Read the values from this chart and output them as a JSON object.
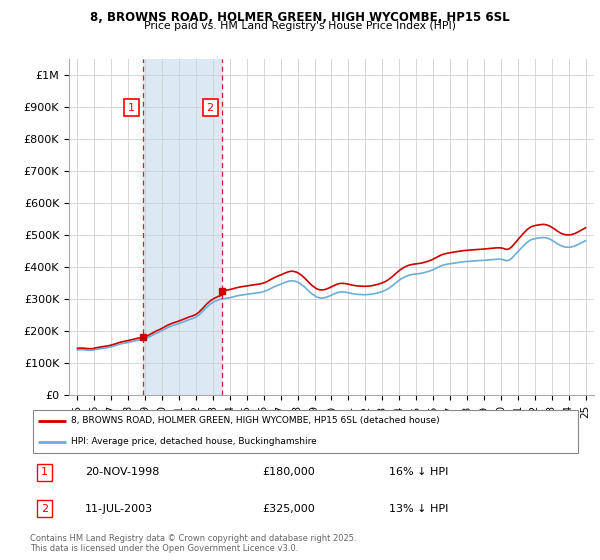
{
  "title_line1": "8, BROWNS ROAD, HOLMER GREEN, HIGH WYCOMBE, HP15 6SL",
  "title_line2": "Price paid vs. HM Land Registry's House Price Index (HPI)",
  "ylim": [
    0,
    1050000
  ],
  "yticks": [
    0,
    100000,
    200000,
    300000,
    400000,
    500000,
    600000,
    700000,
    800000,
    900000,
    1000000
  ],
  "ytick_labels": [
    "£0",
    "£100K",
    "£200K",
    "£300K",
    "£400K",
    "£500K",
    "£600K",
    "£700K",
    "£800K",
    "£900K",
    "£1M"
  ],
  "hpi_color": "#6baed6",
  "sale_color": "#cc0000",
  "grid_color": "#d0d0d0",
  "span_color": "#dce9f5",
  "annotation1_label": "1",
  "annotation1_date": "20-NOV-1998",
  "annotation1_price": 180000,
  "annotation1_hpi_pct": "16% ↓ HPI",
  "annotation2_label": "2",
  "annotation2_date": "11-JUL-2003",
  "annotation2_price": 325000,
  "annotation2_hpi_pct": "13% ↓ HPI",
  "legend_line1": "8, BROWNS ROAD, HOLMER GREEN, HIGH WYCOMBE, HP15 6SL (detached house)",
  "legend_line2": "HPI: Average price, detached house, Buckinghamshire",
  "footnote": "Contains HM Land Registry data © Crown copyright and database right 2025.\nThis data is licensed under the Open Government Licence v3.0.",
  "sale1_x": 1998.88,
  "sale1_y": 180000,
  "sale2_x": 2003.53,
  "sale2_y": 325000,
  "vline1_x": 1998.88,
  "vline2_x": 2003.53,
  "xlim": [
    1994.5,
    2025.5
  ],
  "xticks": [
    1995,
    1996,
    1997,
    1998,
    1999,
    2000,
    2001,
    2002,
    2003,
    2004,
    2005,
    2006,
    2007,
    2008,
    2009,
    2010,
    2011,
    2012,
    2013,
    2014,
    2015,
    2016,
    2017,
    2018,
    2019,
    2020,
    2021,
    2022,
    2023,
    2024,
    2025
  ],
  "hpi_index": [
    [
      1995,
      1
    ],
    [
      1995.08,
      1.005
    ],
    [
      1995.17,
      1.007
    ],
    [
      1995.25,
      1.006
    ],
    [
      1995.33,
      1.005
    ],
    [
      1995.42,
      1.003
    ],
    [
      1995.5,
      0.998
    ],
    [
      1995.58,
      0.996
    ],
    [
      1995.67,
      0.995
    ],
    [
      1995.75,
      0.993
    ],
    [
      1995.83,
      0.994
    ],
    [
      1995.92,
      0.996
    ],
    [
      1996,
      1.004
    ],
    [
      1996.08,
      1.012
    ],
    [
      1996.17,
      1.018
    ],
    [
      1996.25,
      1.022
    ],
    [
      1996.33,
      1.028
    ],
    [
      1996.42,
      1.033
    ],
    [
      1996.5,
      1.038
    ],
    [
      1996.58,
      1.043
    ],
    [
      1996.67,
      1.047
    ],
    [
      1996.75,
      1.051
    ],
    [
      1996.83,
      1.057
    ],
    [
      1996.92,
      1.064
    ],
    [
      1997,
      1.072
    ],
    [
      1997.08,
      1.082
    ],
    [
      1997.17,
      1.09
    ],
    [
      1997.25,
      1.1
    ],
    [
      1997.33,
      1.11
    ],
    [
      1997.42,
      1.12
    ],
    [
      1997.5,
      1.13
    ],
    [
      1997.58,
      1.138
    ],
    [
      1997.67,
      1.144
    ],
    [
      1997.75,
      1.15
    ],
    [
      1997.83,
      1.157
    ],
    [
      1997.92,
      1.163
    ],
    [
      1998,
      1.17
    ],
    [
      1998.08,
      1.178
    ],
    [
      1998.17,
      1.185
    ],
    [
      1998.25,
      1.192
    ],
    [
      1998.33,
      1.2
    ],
    [
      1998.42,
      1.208
    ],
    [
      1998.5,
      1.216
    ],
    [
      1998.58,
      1.222
    ],
    [
      1998.67,
      1.228
    ],
    [
      1998.75,
      1.233
    ],
    [
      1998.83,
      1.238
    ],
    [
      1998.92,
      1.243
    ],
    [
      1999,
      1.25
    ],
    [
      1999.08,
      1.262
    ],
    [
      1999.17,
      1.278
    ],
    [
      1999.25,
      1.295
    ],
    [
      1999.33,
      1.312
    ],
    [
      1999.42,
      1.328
    ],
    [
      1999.5,
      1.345
    ],
    [
      1999.58,
      1.362
    ],
    [
      1999.67,
      1.376
    ],
    [
      1999.75,
      1.39
    ],
    [
      1999.83,
      1.403
    ],
    [
      1999.92,
      1.418
    ],
    [
      2000,
      1.434
    ],
    [
      2000.08,
      1.452
    ],
    [
      2000.17,
      1.468
    ],
    [
      2000.25,
      1.485
    ],
    [
      2000.33,
      1.5
    ],
    [
      2000.42,
      1.515
    ],
    [
      2000.5,
      1.528
    ],
    [
      2000.58,
      1.54
    ],
    [
      2000.67,
      1.55
    ],
    [
      2000.75,
      1.56
    ],
    [
      2000.83,
      1.57
    ],
    [
      2000.92,
      1.58
    ],
    [
      2001,
      1.59
    ],
    [
      2001.08,
      1.602
    ],
    [
      2001.17,
      1.614
    ],
    [
      2001.25,
      1.626
    ],
    [
      2001.33,
      1.638
    ],
    [
      2001.42,
      1.65
    ],
    [
      2001.5,
      1.663
    ],
    [
      2001.58,
      1.675
    ],
    [
      2001.67,
      1.685
    ],
    [
      2001.75,
      1.695
    ],
    [
      2001.83,
      1.706
    ],
    [
      2001.92,
      1.718
    ],
    [
      2002,
      1.732
    ],
    [
      2002.08,
      1.755
    ],
    [
      2002.17,
      1.78
    ],
    [
      2002.25,
      1.808
    ],
    [
      2002.33,
      1.838
    ],
    [
      2002.42,
      1.87
    ],
    [
      2002.5,
      1.904
    ],
    [
      2002.58,
      1.938
    ],
    [
      2002.67,
      1.968
    ],
    [
      2002.75,
      1.995
    ],
    [
      2002.83,
      2.02
    ],
    [
      2002.92,
      2.042
    ],
    [
      2003,
      2.062
    ],
    [
      2003.08,
      2.08
    ],
    [
      2003.17,
      2.096
    ],
    [
      2003.25,
      2.11
    ],
    [
      2003.33,
      2.122
    ],
    [
      2003.42,
      2.132
    ],
    [
      2003.5,
      2.14
    ],
    [
      2003.58,
      2.146
    ],
    [
      2003.67,
      2.15
    ],
    [
      2003.75,
      2.154
    ],
    [
      2003.83,
      2.158
    ],
    [
      2003.92,
      2.162
    ],
    [
      2004,
      2.168
    ],
    [
      2004.08,
      2.175
    ],
    [
      2004.17,
      2.183
    ],
    [
      2004.25,
      2.192
    ],
    [
      2004.33,
      2.2
    ],
    [
      2004.42,
      2.208
    ],
    [
      2004.5,
      2.215
    ],
    [
      2004.58,
      2.22
    ],
    [
      2004.67,
      2.225
    ],
    [
      2004.75,
      2.23
    ],
    [
      2004.83,
      2.235
    ],
    [
      2004.92,
      2.24
    ],
    [
      2005,
      2.245
    ],
    [
      2005.08,
      2.25
    ],
    [
      2005.17,
      2.254
    ],
    [
      2005.25,
      2.258
    ],
    [
      2005.33,
      2.262
    ],
    [
      2005.42,
      2.266
    ],
    [
      2005.5,
      2.27
    ],
    [
      2005.58,
      2.274
    ],
    [
      2005.67,
      2.278
    ],
    [
      2005.75,
      2.282
    ],
    [
      2005.83,
      2.288
    ],
    [
      2005.92,
      2.295
    ],
    [
      2006,
      2.304
    ],
    [
      2006.08,
      2.315
    ],
    [
      2006.17,
      2.328
    ],
    [
      2006.25,
      2.342
    ],
    [
      2006.33,
      2.358
    ],
    [
      2006.42,
      2.374
    ],
    [
      2006.5,
      2.39
    ],
    [
      2006.58,
      2.406
    ],
    [
      2006.67,
      2.42
    ],
    [
      2006.75,
      2.433
    ],
    [
      2006.83,
      2.445
    ],
    [
      2006.92,
      2.456
    ],
    [
      2007,
      2.468
    ],
    [
      2007.08,
      2.482
    ],
    [
      2007.17,
      2.495
    ],
    [
      2007.25,
      2.508
    ],
    [
      2007.33,
      2.52
    ],
    [
      2007.42,
      2.53
    ],
    [
      2007.5,
      2.538
    ],
    [
      2007.58,
      2.543
    ],
    [
      2007.67,
      2.545
    ],
    [
      2007.75,
      2.543
    ],
    [
      2007.83,
      2.537
    ],
    [
      2007.92,
      2.528
    ],
    [
      2008,
      2.515
    ],
    [
      2008.08,
      2.498
    ],
    [
      2008.17,
      2.478
    ],
    [
      2008.25,
      2.455
    ],
    [
      2008.33,
      2.43
    ],
    [
      2008.42,
      2.403
    ],
    [
      2008.5,
      2.374
    ],
    [
      2008.58,
      2.344
    ],
    [
      2008.67,
      2.314
    ],
    [
      2008.75,
      2.285
    ],
    [
      2008.83,
      2.258
    ],
    [
      2008.92,
      2.234
    ],
    [
      2009,
      2.212
    ],
    [
      2009.08,
      2.193
    ],
    [
      2009.17,
      2.178
    ],
    [
      2009.25,
      2.168
    ],
    [
      2009.33,
      2.162
    ],
    [
      2009.42,
      2.16
    ],
    [
      2009.5,
      2.162
    ],
    [
      2009.58,
      2.167
    ],
    [
      2009.67,
      2.175
    ],
    [
      2009.75,
      2.185
    ],
    [
      2009.83,
      2.197
    ],
    [
      2009.92,
      2.21
    ],
    [
      2010,
      2.225
    ],
    [
      2010.08,
      2.24
    ],
    [
      2010.17,
      2.254
    ],
    [
      2010.25,
      2.267
    ],
    [
      2010.33,
      2.278
    ],
    [
      2010.42,
      2.287
    ],
    [
      2010.5,
      2.293
    ],
    [
      2010.58,
      2.296
    ],
    [
      2010.67,
      2.296
    ],
    [
      2010.75,
      2.294
    ],
    [
      2010.83,
      2.29
    ],
    [
      2010.92,
      2.284
    ],
    [
      2011,
      2.277
    ],
    [
      2011.08,
      2.27
    ],
    [
      2011.17,
      2.263
    ],
    [
      2011.25,
      2.257
    ],
    [
      2011.33,
      2.252
    ],
    [
      2011.42,
      2.248
    ],
    [
      2011.5,
      2.244
    ],
    [
      2011.58,
      2.241
    ],
    [
      2011.67,
      2.239
    ],
    [
      2011.75,
      2.237
    ],
    [
      2011.83,
      2.236
    ],
    [
      2011.92,
      2.235
    ],
    [
      2012,
      2.235
    ],
    [
      2012.08,
      2.236
    ],
    [
      2012.17,
      2.238
    ],
    [
      2012.25,
      2.241
    ],
    [
      2012.33,
      2.245
    ],
    [
      2012.42,
      2.25
    ],
    [
      2012.5,
      2.255
    ],
    [
      2012.58,
      2.261
    ],
    [
      2012.67,
      2.268
    ],
    [
      2012.75,
      2.276
    ],
    [
      2012.83,
      2.285
    ],
    [
      2012.92,
      2.295
    ],
    [
      2013,
      2.306
    ],
    [
      2013.08,
      2.318
    ],
    [
      2013.17,
      2.332
    ],
    [
      2013.25,
      2.348
    ],
    [
      2013.33,
      2.366
    ],
    [
      2013.42,
      2.386
    ],
    [
      2013.5,
      2.408
    ],
    [
      2013.58,
      2.432
    ],
    [
      2013.67,
      2.457
    ],
    [
      2013.75,
      2.483
    ],
    [
      2013.83,
      2.509
    ],
    [
      2013.92,
      2.534
    ],
    [
      2014,
      2.558
    ],
    [
      2014.08,
      2.58
    ],
    [
      2014.17,
      2.6
    ],
    [
      2014.25,
      2.618
    ],
    [
      2014.33,
      2.634
    ],
    [
      2014.42,
      2.648
    ],
    [
      2014.5,
      2.66
    ],
    [
      2014.58,
      2.67
    ],
    [
      2014.67,
      2.678
    ],
    [
      2014.75,
      2.685
    ],
    [
      2014.83,
      2.69
    ],
    [
      2014.92,
      2.694
    ],
    [
      2015,
      2.697
    ],
    [
      2015.08,
      2.7
    ],
    [
      2015.17,
      2.704
    ],
    [
      2015.25,
      2.709
    ],
    [
      2015.33,
      2.715
    ],
    [
      2015.42,
      2.722
    ],
    [
      2015.5,
      2.73
    ],
    [
      2015.58,
      2.738
    ],
    [
      2015.67,
      2.747
    ],
    [
      2015.75,
      2.757
    ],
    [
      2015.83,
      2.768
    ],
    [
      2015.92,
      2.78
    ],
    [
      2016,
      2.793
    ],
    [
      2016.08,
      2.808
    ],
    [
      2016.17,
      2.824
    ],
    [
      2016.25,
      2.84
    ],
    [
      2016.33,
      2.856
    ],
    [
      2016.42,
      2.87
    ],
    [
      2016.5,
      2.882
    ],
    [
      2016.58,
      2.893
    ],
    [
      2016.67,
      2.902
    ],
    [
      2016.75,
      2.91
    ],
    [
      2016.83,
      2.916
    ],
    [
      2016.92,
      2.921
    ],
    [
      2017,
      2.925
    ],
    [
      2017.08,
      2.93
    ],
    [
      2017.17,
      2.935
    ],
    [
      2017.25,
      2.94
    ],
    [
      2017.33,
      2.945
    ],
    [
      2017.42,
      2.95
    ],
    [
      2017.5,
      2.955
    ],
    [
      2017.58,
      2.96
    ],
    [
      2017.67,
      2.964
    ],
    [
      2017.75,
      2.968
    ],
    [
      2017.83,
      2.971
    ],
    [
      2017.92,
      2.974
    ],
    [
      2018,
      2.977
    ],
    [
      2018.08,
      2.98
    ],
    [
      2018.17,
      2.982
    ],
    [
      2018.25,
      2.984
    ],
    [
      2018.33,
      2.986
    ],
    [
      2018.42,
      2.988
    ],
    [
      2018.5,
      2.99
    ],
    [
      2018.58,
      2.992
    ],
    [
      2018.67,
      2.994
    ],
    [
      2018.75,
      2.996
    ],
    [
      2018.83,
      2.998
    ],
    [
      2018.92,
      3.0
    ],
    [
      2019,
      3.002
    ],
    [
      2019.08,
      3.005
    ],
    [
      2019.17,
      3.008
    ],
    [
      2019.25,
      3.011
    ],
    [
      2019.33,
      3.014
    ],
    [
      2019.42,
      3.017
    ],
    [
      2019.5,
      3.02
    ],
    [
      2019.58,
      3.023
    ],
    [
      2019.67,
      3.025
    ],
    [
      2019.75,
      3.027
    ],
    [
      2019.83,
      3.028
    ],
    [
      2019.92,
      3.028
    ],
    [
      2020,
      3.026
    ],
    [
      2020.08,
      3.021
    ],
    [
      2020.17,
      3.013
    ],
    [
      2020.25,
      3.002
    ],
    [
      2020.33,
      2.995
    ],
    [
      2020.42,
      2.998
    ],
    [
      2020.5,
      3.01
    ],
    [
      2020.58,
      3.03
    ],
    [
      2020.67,
      3.058
    ],
    [
      2020.75,
      3.09
    ],
    [
      2020.83,
      3.124
    ],
    [
      2020.92,
      3.158
    ],
    [
      2021,
      3.192
    ],
    [
      2021.08,
      3.226
    ],
    [
      2021.17,
      3.26
    ],
    [
      2021.25,
      3.293
    ],
    [
      2021.33,
      3.325
    ],
    [
      2021.42,
      3.356
    ],
    [
      2021.5,
      3.385
    ],
    [
      2021.58,
      3.412
    ],
    [
      2021.67,
      3.435
    ],
    [
      2021.75,
      3.454
    ],
    [
      2021.83,
      3.468
    ],
    [
      2021.92,
      3.478
    ],
    [
      2022,
      3.485
    ],
    [
      2022.08,
      3.49
    ],
    [
      2022.17,
      3.495
    ],
    [
      2022.25,
      3.5
    ],
    [
      2022.33,
      3.505
    ],
    [
      2022.42,
      3.508
    ],
    [
      2022.5,
      3.51
    ],
    [
      2022.58,
      3.508
    ],
    [
      2022.67,
      3.503
    ],
    [
      2022.75,
      3.495
    ],
    [
      2022.83,
      3.484
    ],
    [
      2022.92,
      3.47
    ],
    [
      2023,
      3.453
    ],
    [
      2023.08,
      3.434
    ],
    [
      2023.17,
      3.414
    ],
    [
      2023.25,
      3.393
    ],
    [
      2023.33,
      3.373
    ],
    [
      2023.42,
      3.354
    ],
    [
      2023.5,
      3.337
    ],
    [
      2023.58,
      3.323
    ],
    [
      2023.67,
      3.312
    ],
    [
      2023.75,
      3.303
    ],
    [
      2023.83,
      3.297
    ],
    [
      2023.92,
      3.294
    ],
    [
      2024,
      3.293
    ],
    [
      2024.08,
      3.295
    ],
    [
      2024.17,
      3.3
    ],
    [
      2024.25,
      3.308
    ],
    [
      2024.33,
      3.318
    ],
    [
      2024.42,
      3.33
    ],
    [
      2024.5,
      3.344
    ],
    [
      2024.58,
      3.36
    ],
    [
      2024.67,
      3.376
    ],
    [
      2024.75,
      3.392
    ],
    [
      2024.83,
      3.408
    ],
    [
      2024.92,
      3.424
    ],
    [
      2025,
      3.44
    ]
  ]
}
